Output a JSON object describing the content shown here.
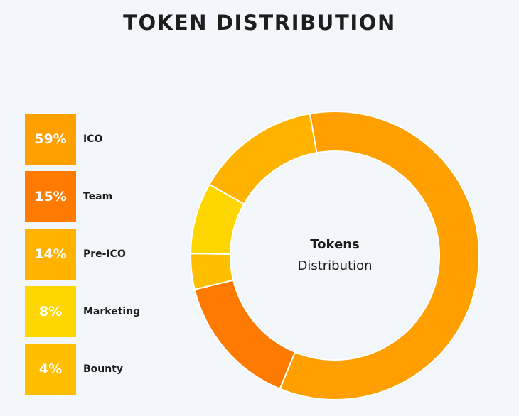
{
  "page": {
    "title": "TOKEN DISTRIBUTION"
  },
  "center_label": {
    "primary": "Tokens",
    "secondary": "Distribution"
  },
  "legend": {
    "items": [
      {
        "label": "ICO",
        "value_text": "59%"
      },
      {
        "label": "Team",
        "value_text": "15%"
      },
      {
        "label": "Pre-ICO",
        "value_text": "14%"
      },
      {
        "label": "Marketing",
        "value_text": "8%"
      },
      {
        "label": "Bounty",
        "value_text": "4%"
      }
    ]
  },
  "chart_data": {
    "type": "pie",
    "title": "TOKEN DISTRIBUTION",
    "categories": [
      "ICO",
      "Team",
      "Bounty",
      "Marketing",
      "Pre-ICO"
    ],
    "values": [
      59,
      15,
      4,
      8,
      14
    ],
    "colors": [
      "#ff9f00",
      "#ff7a00",
      "#ffbf00",
      "#ffd600",
      "#ffb300"
    ],
    "center_title": "Tokens",
    "center_subtitle": "Distribution"
  },
  "colors": {
    "background": "#f3f7fb",
    "legend_ico": "#ff9f00",
    "legend_team": "#ff7a00",
    "legend_pre_ico": "#ffb300",
    "legend_marketing": "#ffd600",
    "legend_bounty": "#ffbf00",
    "donut_separator": "#ffffff",
    "text_dark": "#1d1d1d",
    "text_white": "#ffffff"
  }
}
